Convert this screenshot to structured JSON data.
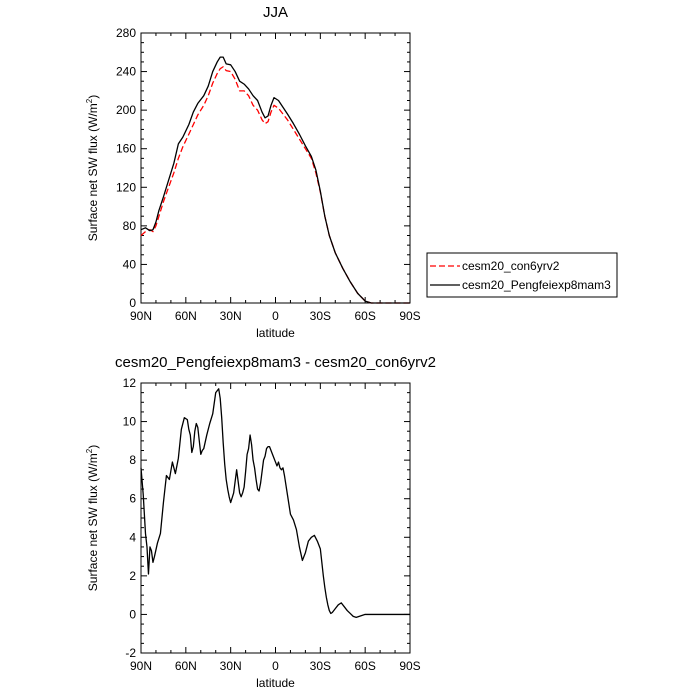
{
  "chart_data": [
    {
      "type": "line",
      "title": "JJA",
      "xlabel": "latitude",
      "ylabel": "Surface net SW flux (W/m",
      "ylabel_sup": "2",
      "ylabel_tail": ")",
      "xlim": [
        90,
        -90
      ],
      "ylim": [
        0,
        280
      ],
      "xticks": [
        90,
        60,
        30,
        0,
        -30,
        -60,
        -90
      ],
      "xtick_labels": [
        "90N",
        "60N",
        "30N",
        "0",
        "30S",
        "60S",
        "90S"
      ],
      "yticks": [
        0,
        40,
        80,
        120,
        160,
        200,
        240,
        280
      ],
      "ytick_labels": [
        "0",
        "40",
        "80",
        "120",
        "160",
        "200",
        "240",
        "280"
      ],
      "legend_position": "right",
      "series": [
        {
          "name": "cesm20_con6yrv2",
          "color": "#ff0000",
          "dash": "dashed",
          "x": [
            90,
            87,
            84,
            82,
            80,
            78,
            75,
            72,
            68,
            65,
            62,
            58,
            55,
            52,
            48,
            45,
            42,
            39,
            37,
            35,
            33,
            30,
            27,
            24,
            21,
            18,
            15,
            12,
            9,
            7,
            5,
            3,
            1,
            -2,
            -5,
            -8,
            -12,
            -16,
            -20,
            -24,
            -27,
            -30,
            -33,
            -36,
            -40,
            -45,
            -50,
            -55,
            -60,
            -64,
            -67,
            -70,
            -73,
            -76,
            -80,
            -85,
            -90
          ],
          "y": [
            70,
            74,
            76,
            74,
            80,
            90,
            105,
            118,
            135,
            150,
            162,
            175,
            185,
            195,
            205,
            215,
            228,
            238,
            243,
            245,
            241,
            240,
            232,
            220,
            220,
            215,
            205,
            200,
            190,
            186,
            188,
            198,
            205,
            202,
            196,
            190,
            180,
            170,
            160,
            150,
            135,
            115,
            90,
            70,
            52,
            36,
            22,
            10,
            2,
            0,
            0,
            0,
            0,
            0,
            0,
            0,
            0
          ]
        },
        {
          "name": "cesm20_Pengfeiexp8mam3",
          "color": "#000000",
          "dash": "solid",
          "x": [
            90,
            87,
            84,
            82,
            80,
            78,
            75,
            72,
            68,
            65,
            62,
            58,
            55,
            52,
            48,
            45,
            42,
            39,
            37,
            35,
            33,
            30,
            27,
            24,
            21,
            18,
            15,
            12,
            9,
            7,
            5,
            3,
            1,
            -2,
            -5,
            -8,
            -12,
            -16,
            -20,
            -24,
            -27,
            -30,
            -33,
            -36,
            -40,
            -45,
            -50,
            -55,
            -60,
            -64,
            -67,
            -70,
            -73,
            -76,
            -80,
            -85,
            -90
          ],
          "y": [
            76,
            78,
            75,
            76,
            84,
            96,
            110,
            125,
            145,
            165,
            172,
            185,
            198,
            207,
            215,
            225,
            240,
            250,
            255,
            255,
            248,
            247,
            240,
            230,
            227,
            222,
            215,
            210,
            198,
            192,
            194,
            205,
            213,
            210,
            203,
            196,
            186,
            175,
            163,
            152,
            138,
            116,
            90,
            70,
            52,
            36,
            22,
            10,
            2,
            0,
            0,
            0,
            0,
            0,
            0,
            0,
            0
          ]
        }
      ]
    },
    {
      "type": "line",
      "title": "cesm20_Pengfeiexp8mam3 - cesm20_con6yrv2",
      "xlabel": "latitude",
      "ylabel": "Surface net SW flux (W/m",
      "ylabel_sup": "2",
      "ylabel_tail": ")",
      "xlim": [
        90,
        -90
      ],
      "ylim": [
        -2,
        12
      ],
      "xticks": [
        90,
        60,
        30,
        0,
        -30,
        -60,
        -90
      ],
      "xtick_labels": [
        "90N",
        "60N",
        "30N",
        "0",
        "30S",
        "60S",
        "90S"
      ],
      "yticks": [
        -2,
        0,
        2,
        4,
        6,
        8,
        10,
        12
      ],
      "ytick_labels": [
        "-2",
        "0",
        "2",
        "4",
        "6",
        "8",
        "10",
        "12"
      ],
      "series": [
        {
          "color": "#000000",
          "dash": "solid",
          "x": [
            90,
            88.5,
            87,
            86,
            85,
            84,
            83,
            82,
            81,
            79,
            77,
            75,
            73,
            71,
            69,
            67,
            65,
            63,
            61,
            59,
            58,
            57,
            56,
            55,
            54,
            53,
            52,
            51,
            50,
            49,
            48,
            46,
            44,
            42,
            40,
            38,
            37,
            36,
            35,
            34,
            33,
            32,
            31,
            30,
            28,
            26,
            25,
            24,
            23,
            22,
            21,
            20,
            19,
            18,
            17,
            16,
            15,
            14,
            13,
            12,
            11,
            10,
            9,
            8,
            7,
            6,
            5,
            4,
            3,
            2,
            1,
            0,
            -1,
            -2,
            -3,
            -4,
            -5,
            -6,
            -8,
            -10,
            -12,
            -14,
            -16,
            -18,
            -20,
            -22,
            -24,
            -26,
            -28,
            -30,
            -31,
            -32,
            -33,
            -34,
            -35,
            -36,
            -37,
            -38,
            -40,
            -42,
            -44,
            -46,
            -48,
            -50,
            -52,
            -54,
            -56,
            -58,
            -60,
            -62,
            -64,
            -66,
            -70,
            -75,
            -80,
            -85,
            -90
          ],
          "y": [
            7.6,
            6.2,
            4.2,
            3.5,
            2.1,
            3.5,
            3.3,
            2.7,
            3.0,
            3.7,
            4.2,
            5.8,
            7.2,
            7.0,
            7.9,
            7.3,
            8.1,
            9.6,
            10.2,
            10.1,
            9.6,
            9.3,
            8.4,
            8.7,
            9.5,
            9.9,
            9.7,
            9.0,
            8.3,
            8.5,
            8.6,
            9.3,
            9.9,
            10.4,
            11.5,
            11.7,
            11.2,
            10.2,
            8.9,
            7.8,
            7.0,
            6.5,
            6.1,
            5.8,
            6.3,
            7.5,
            6.9,
            6.3,
            6.1,
            6.3,
            6.6,
            7.4,
            8.3,
            8.6,
            9.3,
            8.8,
            8.0,
            7.6,
            7.0,
            6.5,
            6.4,
            6.8,
            7.4,
            8.0,
            8.2,
            8.6,
            8.7,
            8.7,
            8.5,
            8.3,
            8.1,
            7.9,
            7.7,
            7.9,
            7.6,
            7.5,
            7.6,
            7.2,
            6.2,
            5.2,
            4.9,
            4.4,
            3.5,
            2.8,
            3.2,
            3.8,
            4.0,
            4.1,
            3.8,
            3.4,
            2.7,
            2.0,
            1.4,
            0.9,
            0.5,
            0.2,
            0.05,
            0.1,
            0.3,
            0.5,
            0.6,
            0.4,
            0.2,
            0.05,
            -0.1,
            -0.15,
            -0.1,
            -0.05,
            0,
            0,
            0,
            0,
            0,
            0,
            0,
            0,
            0
          ]
        }
      ]
    }
  ]
}
